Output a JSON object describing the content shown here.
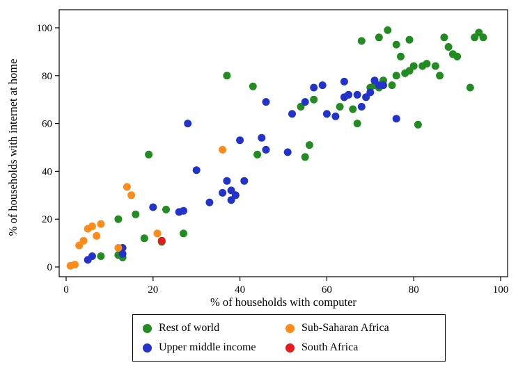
{
  "figure": {
    "background": "#ffffff"
  },
  "legend": {
    "entries": [
      {
        "label": "Rest of world",
        "color": "#228b22"
      },
      {
        "label": "Sub-Saharan Africa",
        "color": "#ff8c1a"
      },
      {
        "label": "Upper middle income",
        "color": "#2233cc"
      },
      {
        "label": "South Africa",
        "color": "#e41a1c"
      }
    ]
  },
  "chart_data": {
    "type": "scatter",
    "title": "",
    "xlabel": "% of households with computer",
    "ylabel": "% of households with internet at home",
    "xlim": [
      0,
      100
    ],
    "ylim": [
      0,
      100
    ],
    "xticks": [
      0,
      20,
      40,
      60,
      80,
      100
    ],
    "yticks": [
      0,
      20,
      40,
      60,
      80,
      100
    ],
    "grid": false,
    "legend_position": "bottom",
    "marker_radius": 5.5,
    "series": [
      {
        "name": "Rest of world",
        "color": "#228b22",
        "points": [
          [
            8,
            4.5
          ],
          [
            12,
            5
          ],
          [
            13,
            4
          ],
          [
            12,
            20
          ],
          [
            16,
            22
          ],
          [
            18,
            12
          ],
          [
            19,
            47
          ],
          [
            22,
            10.5
          ],
          [
            23,
            24
          ],
          [
            27,
            14
          ],
          [
            37,
            80
          ],
          [
            43,
            75.5
          ],
          [
            44,
            47
          ],
          [
            54,
            67
          ],
          [
            55,
            46
          ],
          [
            56,
            51
          ],
          [
            57,
            70
          ],
          [
            63,
            67
          ],
          [
            66,
            66
          ],
          [
            67,
            60
          ],
          [
            68,
            94.5
          ],
          [
            70,
            75
          ],
          [
            71,
            76
          ],
          [
            72,
            75
          ],
          [
            72,
            96
          ],
          [
            73,
            78
          ],
          [
            74,
            99
          ],
          [
            75,
            76
          ],
          [
            76,
            80
          ],
          [
            76,
            93
          ],
          [
            77,
            88
          ],
          [
            78,
            81
          ],
          [
            79,
            82
          ],
          [
            79,
            95
          ],
          [
            80,
            84
          ],
          [
            81,
            59.5
          ],
          [
            82,
            84
          ],
          [
            83,
            85
          ],
          [
            85,
            84
          ],
          [
            86,
            80
          ],
          [
            87,
            96
          ],
          [
            88,
            92
          ],
          [
            89,
            89
          ],
          [
            90,
            88
          ],
          [
            93,
            75
          ],
          [
            94,
            96
          ],
          [
            95,
            98
          ],
          [
            96,
            96
          ]
        ]
      },
      {
        "name": "Upper middle income",
        "color": "#2233cc",
        "points": [
          [
            5,
            3
          ],
          [
            6,
            4.5
          ],
          [
            13,
            8
          ],
          [
            13,
            5.5
          ],
          [
            20,
            25
          ],
          [
            26,
            23
          ],
          [
            27,
            23.5
          ],
          [
            28,
            60
          ],
          [
            30,
            40.5
          ],
          [
            33,
            27
          ],
          [
            36,
            31
          ],
          [
            37,
            36
          ],
          [
            38,
            32
          ],
          [
            38,
            28
          ],
          [
            39,
            30
          ],
          [
            40,
            53
          ],
          [
            41,
            36
          ],
          [
            45,
            54
          ],
          [
            46,
            49
          ],
          [
            46,
            69
          ],
          [
            51,
            48
          ],
          [
            52,
            64
          ],
          [
            55,
            69
          ],
          [
            57,
            75
          ],
          [
            59,
            76
          ],
          [
            60,
            64
          ],
          [
            62,
            63
          ],
          [
            64,
            77.5
          ],
          [
            64,
            71
          ],
          [
            65,
            72
          ],
          [
            67,
            72
          ],
          [
            68,
            67
          ],
          [
            69,
            71
          ],
          [
            70,
            73
          ],
          [
            71,
            78
          ],
          [
            72,
            76
          ],
          [
            73,
            76
          ],
          [
            76,
            62
          ]
        ]
      },
      {
        "name": "Sub-Saharan Africa",
        "color": "#ff8c1a",
        "points": [
          [
            1,
            0.5
          ],
          [
            2,
            1
          ],
          [
            3,
            9
          ],
          [
            4,
            11
          ],
          [
            5,
            16
          ],
          [
            6,
            17
          ],
          [
            7,
            13
          ],
          [
            8,
            18
          ],
          [
            12,
            8
          ],
          [
            14,
            33.5
          ],
          [
            15,
            30
          ],
          [
            21,
            14
          ],
          [
            36,
            49
          ]
        ]
      },
      {
        "name": "South Africa",
        "color": "#e41a1c",
        "points": [
          [
            22,
            11
          ]
        ]
      }
    ]
  }
}
